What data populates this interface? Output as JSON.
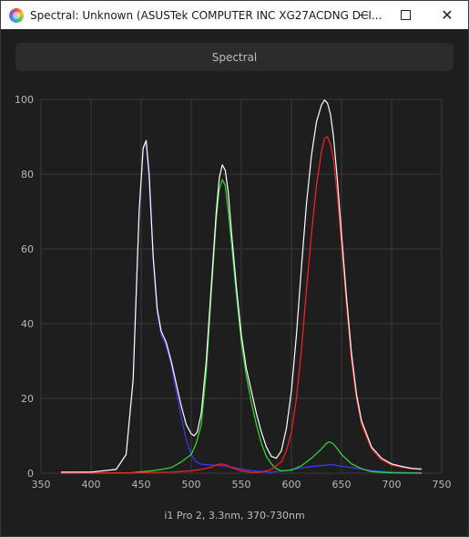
{
  "window": {
    "title": "Spectral: Unknown (ASUSTek COMPUTER INC XG27ACDNG DCI..."
  },
  "tab": {
    "label": "Spectral"
  },
  "footer": {
    "caption": "i1 Pro 2, 3.3nm, 370-730nm"
  },
  "chart_data": {
    "type": "line",
    "xlabel": "",
    "ylabel": "",
    "xlim": [
      350,
      750
    ],
    "ylim": [
      0,
      100
    ],
    "x_ticks": [
      350,
      400,
      450,
      500,
      550,
      600,
      650,
      700,
      750
    ],
    "y_ticks": [
      0,
      20,
      40,
      60,
      80,
      100
    ],
    "grid": true,
    "legend": "none",
    "series": [
      {
        "color": "#ffffff",
        "x": [
          370,
          400,
          425,
          435,
          442,
          448,
          452,
          455,
          458,
          462,
          466,
          470,
          475,
          480,
          485,
          490,
          495,
          500,
          503,
          506,
          510,
          515,
          520,
          525,
          528,
          531,
          534,
          537,
          540,
          545,
          550,
          555,
          560,
          565,
          570,
          575,
          580,
          585,
          590,
          595,
          600,
          605,
          610,
          615,
          620,
          625,
          630,
          633,
          636,
          639,
          642,
          646,
          650,
          655,
          660,
          665,
          670,
          680,
          690,
          700,
          710,
          720,
          730
        ],
        "y": [
          0.3,
          0.3,
          1,
          5,
          25,
          70,
          87,
          89,
          80,
          58,
          44,
          38,
          35,
          30,
          24,
          18,
          13,
          10.5,
          10,
          11,
          16,
          30,
          50,
          70,
          79,
          82.5,
          81,
          75,
          65,
          50,
          37,
          28,
          22,
          16,
          11,
          7,
          4.5,
          4,
          6,
          12,
          22,
          37,
          55,
          72,
          85,
          94,
          98.5,
          99.8,
          99,
          96,
          90,
          78,
          64,
          47,
          32,
          21,
          14,
          7,
          4,
          2.5,
          1.8,
          1.3,
          1.1
        ]
      },
      {
        "color": "#3a3aff",
        "x": [
          370,
          400,
          425,
          435,
          442,
          448,
          452,
          455,
          458,
          462,
          466,
          470,
          475,
          480,
          485,
          490,
          495,
          500,
          505,
          510,
          520,
          530,
          540,
          550,
          560,
          570,
          580,
          590,
          600,
          620,
          640,
          660,
          680,
          700,
          730
        ],
        "y": [
          0.2,
          0.3,
          1,
          5,
          25,
          70,
          87,
          88,
          78,
          57,
          43,
          37,
          34,
          29,
          22,
          15,
          9,
          5,
          3,
          2.4,
          2.2,
          2,
          1.6,
          1.1,
          0.7,
          0.4,
          0.3,
          0.5,
          1,
          1.8,
          2.3,
          1.5,
          0.7,
          0.3,
          0.1
        ]
      },
      {
        "color": "#33dd33",
        "x": [
          370,
          440,
          450,
          460,
          470,
          480,
          490,
          500,
          505,
          510,
          515,
          520,
          525,
          528,
          531,
          534,
          537,
          540,
          545,
          550,
          555,
          560,
          565,
          570,
          575,
          580,
          585,
          590,
          600,
          610,
          620,
          630,
          635,
          638,
          642,
          646,
          650,
          660,
          670,
          680,
          700,
          730
        ],
        "y": [
          0,
          0.1,
          0.4,
          0.6,
          1,
          1.5,
          3,
          5,
          8,
          13,
          27,
          48,
          68,
          76,
          78.5,
          77,
          70,
          62,
          48,
          35,
          26,
          19,
          13,
          8,
          4.5,
          2.5,
          1.2,
          0.6,
          0.8,
          2,
          4,
          6.5,
          8,
          8.4,
          7.8,
          6.5,
          5,
          2.5,
          1.2,
          0.4,
          0.1,
          0
        ]
      },
      {
        "color": "#ff2020",
        "x": [
          370,
          440,
          460,
          480,
          500,
          510,
          520,
          525,
          530,
          535,
          540,
          550,
          560,
          570,
          580,
          590,
          595,
          600,
          605,
          610,
          615,
          620,
          625,
          630,
          633,
          636,
          639,
          642,
          646,
          650,
          655,
          660,
          665,
          670,
          680,
          690,
          700,
          710,
          720,
          730
        ],
        "y": [
          0,
          0.1,
          0.2,
          0.3,
          0.6,
          1,
          1.6,
          2.2,
          2.5,
          2.2,
          1.5,
          0.6,
          0.2,
          0.3,
          1,
          3,
          6,
          11,
          20,
          33,
          49,
          64,
          77,
          86,
          89.5,
          90,
          88,
          84,
          74,
          61,
          45,
          30,
          20,
          13,
          6.5,
          3.5,
          2.2,
          1.6,
          1.2,
          1
        ]
      }
    ]
  }
}
